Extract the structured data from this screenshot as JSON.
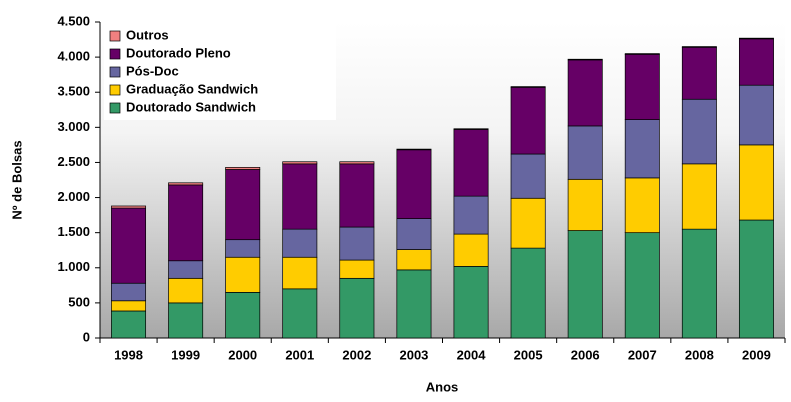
{
  "chart_data": {
    "type": "stacked-bar",
    "x_label": "Anos",
    "y_label": "Nº de Bolsas",
    "categories": [
      "1998",
      "1999",
      "2000",
      "2001",
      "2002",
      "2003",
      "2004",
      "2005",
      "2006",
      "2007",
      "2008",
      "2009"
    ],
    "series": [
      {
        "name": "Doutorado Sandwich",
        "color": "#339966",
        "values": [
          385,
          500,
          650,
          700,
          850,
          970,
          1020,
          1280,
          1530,
          1500,
          1550,
          1680
        ]
      },
      {
        "name": "Graduação Sandwich",
        "color": "#ffcc00",
        "values": [
          145,
          350,
          500,
          450,
          260,
          290,
          460,
          710,
          730,
          780,
          930,
          1070
        ]
      },
      {
        "name": "Pós-Doc",
        "color": "#6666a0",
        "values": [
          250,
          250,
          250,
          400,
          470,
          440,
          540,
          630,
          760,
          830,
          920,
          850
        ]
      },
      {
        "name": "Doutorado Pleno",
        "color": "#660066",
        "values": [
          1070,
          1080,
          1000,
          930,
          900,
          980,
          950,
          950,
          940,
          930,
          740,
          660
        ]
      },
      {
        "name": "Outros",
        "color": "#f08080",
        "values": [
          30,
          30,
          30,
          30,
          30,
          10,
          10,
          10,
          10,
          10,
          10,
          10
        ]
      }
    ],
    "ylim": [
      0,
      4500
    ],
    "yticks": [
      0,
      500,
      {
        "value": 1000,
        "label": "1.000"
      },
      {
        "value": 1500,
        "label": "1.500"
      },
      {
        "value": 2000,
        "label": "2.000"
      },
      {
        "value": 2500,
        "label": "2.500"
      },
      {
        "value": 3000,
        "label": "3.000"
      },
      {
        "value": 3500,
        "label": "3.500"
      },
      {
        "value": 4000,
        "label": "4.000"
      },
      {
        "value": 4500,
        "label": "4.500"
      }
    ],
    "legend": "top-left"
  }
}
